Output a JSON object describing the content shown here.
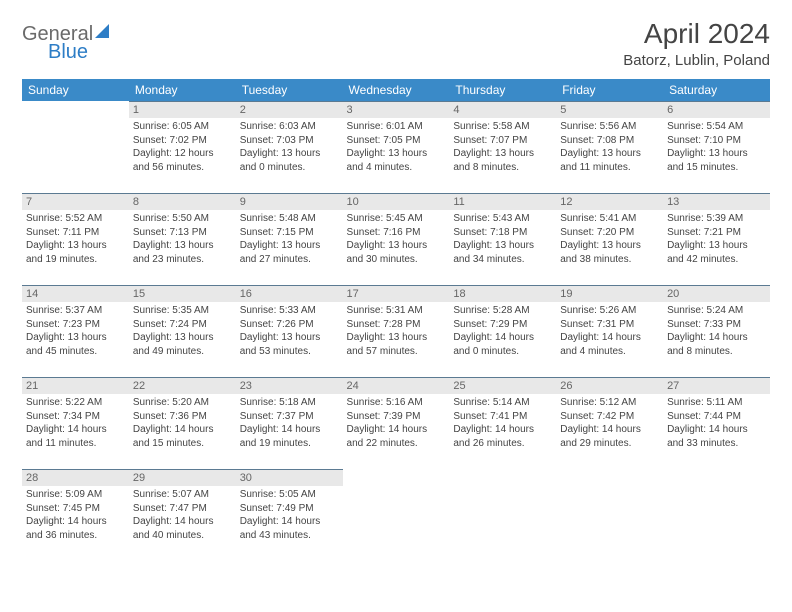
{
  "brand": {
    "general": "General",
    "blue": "Blue"
  },
  "title": "April 2024",
  "location": "Batorz, Lublin, Poland",
  "colors": {
    "header_bg": "#3a8ac8",
    "header_text": "#ffffff",
    "daynum_bg": "#e8e8e8",
    "daynum_text": "#666666",
    "rule": "#5b7a92",
    "body_text": "#444444",
    "logo_gray": "#6a6a6a",
    "logo_blue": "#2d7dc6"
  },
  "weekdays": [
    "Sunday",
    "Monday",
    "Tuesday",
    "Wednesday",
    "Thursday",
    "Friday",
    "Saturday"
  ],
  "weeks": [
    [
      null,
      {
        "n": "1",
        "sr": "Sunrise: 6:05 AM",
        "ss": "Sunset: 7:02 PM",
        "d1": "Daylight: 12 hours",
        "d2": "and 56 minutes."
      },
      {
        "n": "2",
        "sr": "Sunrise: 6:03 AM",
        "ss": "Sunset: 7:03 PM",
        "d1": "Daylight: 13 hours",
        "d2": "and 0 minutes."
      },
      {
        "n": "3",
        "sr": "Sunrise: 6:01 AM",
        "ss": "Sunset: 7:05 PM",
        "d1": "Daylight: 13 hours",
        "d2": "and 4 minutes."
      },
      {
        "n": "4",
        "sr": "Sunrise: 5:58 AM",
        "ss": "Sunset: 7:07 PM",
        "d1": "Daylight: 13 hours",
        "d2": "and 8 minutes."
      },
      {
        "n": "5",
        "sr": "Sunrise: 5:56 AM",
        "ss": "Sunset: 7:08 PM",
        "d1": "Daylight: 13 hours",
        "d2": "and 11 minutes."
      },
      {
        "n": "6",
        "sr": "Sunrise: 5:54 AM",
        "ss": "Sunset: 7:10 PM",
        "d1": "Daylight: 13 hours",
        "d2": "and 15 minutes."
      }
    ],
    [
      {
        "n": "7",
        "sr": "Sunrise: 5:52 AM",
        "ss": "Sunset: 7:11 PM",
        "d1": "Daylight: 13 hours",
        "d2": "and 19 minutes."
      },
      {
        "n": "8",
        "sr": "Sunrise: 5:50 AM",
        "ss": "Sunset: 7:13 PM",
        "d1": "Daylight: 13 hours",
        "d2": "and 23 minutes."
      },
      {
        "n": "9",
        "sr": "Sunrise: 5:48 AM",
        "ss": "Sunset: 7:15 PM",
        "d1": "Daylight: 13 hours",
        "d2": "and 27 minutes."
      },
      {
        "n": "10",
        "sr": "Sunrise: 5:45 AM",
        "ss": "Sunset: 7:16 PM",
        "d1": "Daylight: 13 hours",
        "d2": "and 30 minutes."
      },
      {
        "n": "11",
        "sr": "Sunrise: 5:43 AM",
        "ss": "Sunset: 7:18 PM",
        "d1": "Daylight: 13 hours",
        "d2": "and 34 minutes."
      },
      {
        "n": "12",
        "sr": "Sunrise: 5:41 AM",
        "ss": "Sunset: 7:20 PM",
        "d1": "Daylight: 13 hours",
        "d2": "and 38 minutes."
      },
      {
        "n": "13",
        "sr": "Sunrise: 5:39 AM",
        "ss": "Sunset: 7:21 PM",
        "d1": "Daylight: 13 hours",
        "d2": "and 42 minutes."
      }
    ],
    [
      {
        "n": "14",
        "sr": "Sunrise: 5:37 AM",
        "ss": "Sunset: 7:23 PM",
        "d1": "Daylight: 13 hours",
        "d2": "and 45 minutes."
      },
      {
        "n": "15",
        "sr": "Sunrise: 5:35 AM",
        "ss": "Sunset: 7:24 PM",
        "d1": "Daylight: 13 hours",
        "d2": "and 49 minutes."
      },
      {
        "n": "16",
        "sr": "Sunrise: 5:33 AM",
        "ss": "Sunset: 7:26 PM",
        "d1": "Daylight: 13 hours",
        "d2": "and 53 minutes."
      },
      {
        "n": "17",
        "sr": "Sunrise: 5:31 AM",
        "ss": "Sunset: 7:28 PM",
        "d1": "Daylight: 13 hours",
        "d2": "and 57 minutes."
      },
      {
        "n": "18",
        "sr": "Sunrise: 5:28 AM",
        "ss": "Sunset: 7:29 PM",
        "d1": "Daylight: 14 hours",
        "d2": "and 0 minutes."
      },
      {
        "n": "19",
        "sr": "Sunrise: 5:26 AM",
        "ss": "Sunset: 7:31 PM",
        "d1": "Daylight: 14 hours",
        "d2": "and 4 minutes."
      },
      {
        "n": "20",
        "sr": "Sunrise: 5:24 AM",
        "ss": "Sunset: 7:33 PM",
        "d1": "Daylight: 14 hours",
        "d2": "and 8 minutes."
      }
    ],
    [
      {
        "n": "21",
        "sr": "Sunrise: 5:22 AM",
        "ss": "Sunset: 7:34 PM",
        "d1": "Daylight: 14 hours",
        "d2": "and 11 minutes."
      },
      {
        "n": "22",
        "sr": "Sunrise: 5:20 AM",
        "ss": "Sunset: 7:36 PM",
        "d1": "Daylight: 14 hours",
        "d2": "and 15 minutes."
      },
      {
        "n": "23",
        "sr": "Sunrise: 5:18 AM",
        "ss": "Sunset: 7:37 PM",
        "d1": "Daylight: 14 hours",
        "d2": "and 19 minutes."
      },
      {
        "n": "24",
        "sr": "Sunrise: 5:16 AM",
        "ss": "Sunset: 7:39 PM",
        "d1": "Daylight: 14 hours",
        "d2": "and 22 minutes."
      },
      {
        "n": "25",
        "sr": "Sunrise: 5:14 AM",
        "ss": "Sunset: 7:41 PM",
        "d1": "Daylight: 14 hours",
        "d2": "and 26 minutes."
      },
      {
        "n": "26",
        "sr": "Sunrise: 5:12 AM",
        "ss": "Sunset: 7:42 PM",
        "d1": "Daylight: 14 hours",
        "d2": "and 29 minutes."
      },
      {
        "n": "27",
        "sr": "Sunrise: 5:11 AM",
        "ss": "Sunset: 7:44 PM",
        "d1": "Daylight: 14 hours",
        "d2": "and 33 minutes."
      }
    ],
    [
      {
        "n": "28",
        "sr": "Sunrise: 5:09 AM",
        "ss": "Sunset: 7:45 PM",
        "d1": "Daylight: 14 hours",
        "d2": "and 36 minutes."
      },
      {
        "n": "29",
        "sr": "Sunrise: 5:07 AM",
        "ss": "Sunset: 7:47 PM",
        "d1": "Daylight: 14 hours",
        "d2": "and 40 minutes."
      },
      {
        "n": "30",
        "sr": "Sunrise: 5:05 AM",
        "ss": "Sunset: 7:49 PM",
        "d1": "Daylight: 14 hours",
        "d2": "and 43 minutes."
      },
      null,
      null,
      null,
      null
    ]
  ]
}
